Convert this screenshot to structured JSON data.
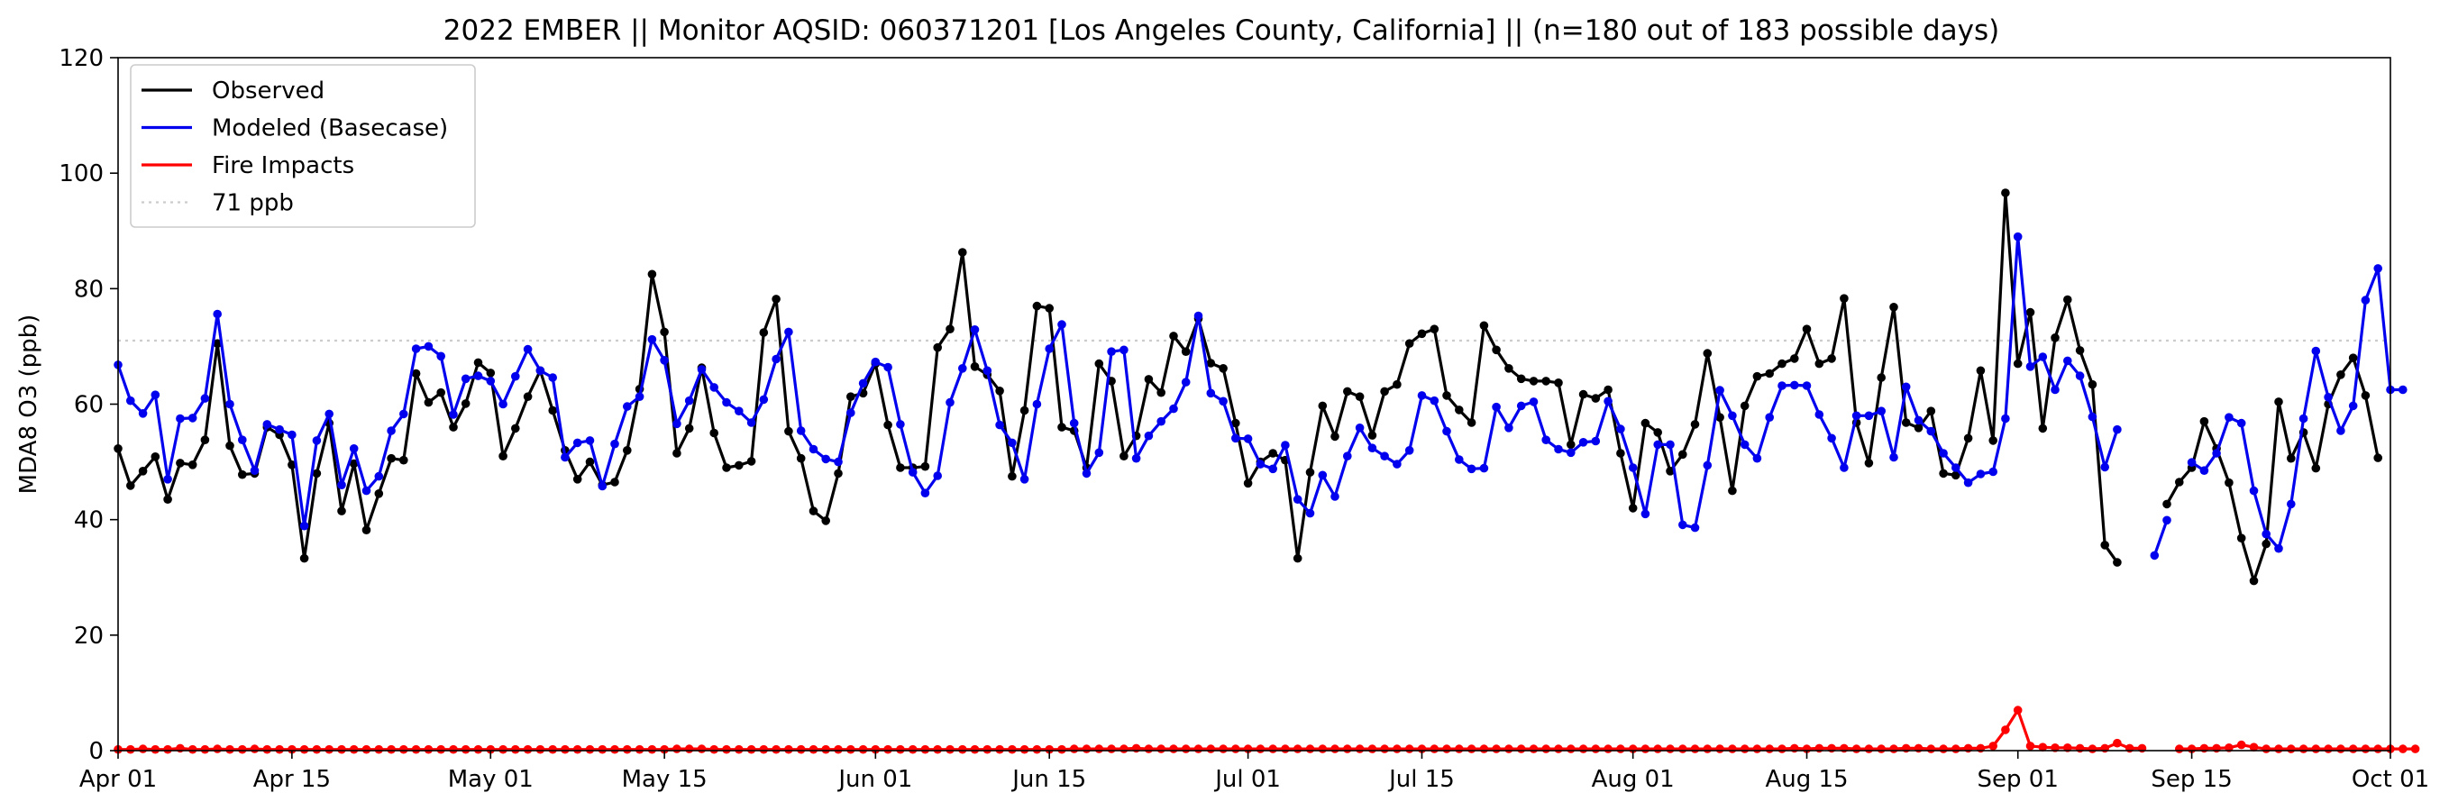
{
  "chart_data": {
    "type": "line",
    "title": "2022 EMBER || Monitor AQSID: 060371201 [Los Angeles County, California] || (n=180 out of 183 possible days)",
    "ylabel": "MDA8 O3 (ppb)",
    "xlabel": "",
    "ylim": [
      0,
      120
    ],
    "xlim": [
      "2022-04-01",
      "2022-10-01"
    ],
    "yticks": [
      "0",
      "20",
      "40",
      "60",
      "80",
      "100",
      "120"
    ],
    "xticks": [
      {
        "date": "2022-04-01",
        "label": "Apr 01"
      },
      {
        "date": "2022-04-15",
        "label": "Apr 15"
      },
      {
        "date": "2022-05-01",
        "label": "May 01"
      },
      {
        "date": "2022-05-15",
        "label": "May 15"
      },
      {
        "date": "2022-06-01",
        "label": "Jun 01"
      },
      {
        "date": "2022-06-15",
        "label": "Jun 15"
      },
      {
        "date": "2022-07-01",
        "label": "Jul 01"
      },
      {
        "date": "2022-07-15",
        "label": "Jul 15"
      },
      {
        "date": "2022-08-01",
        "label": "Aug 01"
      },
      {
        "date": "2022-08-15",
        "label": "Aug 15"
      },
      {
        "date": "2022-09-01",
        "label": "Sep 01"
      },
      {
        "date": "2022-09-15",
        "label": "Sep 15"
      },
      {
        "date": "2022-10-01",
        "label": "Oct 01"
      }
    ],
    "start_date": "2022-04-01",
    "legend_position": "top-left",
    "threshold": {
      "value": 71,
      "label": "71 ppb",
      "color": "#cccccc"
    },
    "series": [
      {
        "name": "Observed",
        "color": "#000000",
        "values": [
          52.3,
          45.9,
          48.4,
          50.9,
          43.5,
          49.8,
          49.5,
          53.8,
          70.5,
          52.8,
          47.8,
          48.0,
          56.0,
          54.7,
          49.5,
          33.3,
          48.0,
          56.7,
          41.5,
          49.7,
          38.2,
          44.5,
          50.6,
          50.3,
          65.3,
          60.3,
          62.0,
          56.0,
          60.1,
          67.2,
          65.4,
          51.0,
          55.8,
          61.3,
          65.8,
          58.9,
          52.0,
          47.0,
          50.0,
          46.0,
          46.5,
          52.0,
          62.6,
          82.5,
          72.5,
          51.5,
          55.8,
          66.3,
          55.0,
          49.0,
          49.4,
          50.1,
          72.4,
          78.2,
          55.3,
          50.6,
          41.5,
          39.8,
          48.0,
          61.3,
          61.9,
          67.0,
          56.4,
          49.0,
          49.0,
          49.2,
          69.8,
          73.0,
          86.3,
          66.5,
          65.1,
          62.3,
          47.5,
          58.9,
          77.0,
          76.6,
          56.0,
          55.4,
          49.0,
          67.0,
          64.0,
          51.0,
          54.5,
          64.3,
          62.0,
          71.8,
          69.1,
          74.8,
          67.1,
          66.2,
          56.7,
          46.3,
          50.0,
          51.5,
          50.3,
          33.3,
          48.2,
          59.7,
          54.4,
          62.2,
          61.3,
          54.6,
          62.2,
          63.4,
          70.5,
          72.2,
          73.0,
          61.5,
          59.0,
          56.8,
          73.6,
          69.4,
          66.2,
          64.4,
          64.0,
          64.0,
          63.7,
          53.0,
          61.7,
          61.0,
          62.5,
          51.5,
          42.0,
          56.7,
          55.1,
          48.4,
          51.3,
          56.5,
          68.8,
          57.7,
          45.0,
          59.7,
          64.8,
          65.3,
          67.0,
          67.9,
          73.0,
          67.0,
          67.9,
          78.3,
          56.8,
          49.8,
          64.6,
          76.8,
          56.8,
          55.9,
          58.8,
          48.0,
          47.7,
          54.1,
          65.8,
          53.7,
          96.6,
          67.0,
          75.9,
          55.8,
          71.5,
          78.1,
          69.3,
          63.4,
          35.6,
          32.6,
          null,
          null,
          null,
          42.7,
          46.5,
          49.0,
          57.0,
          52.3,
          46.4,
          36.8,
          29.4,
          35.8,
          60.4,
          50.6,
          55.1,
          48.9,
          60.0,
          65.1,
          68.0,
          61.5,
          50.7
        ]
      },
      {
        "name": "Modeled (Basecase)",
        "color": "#0000ee",
        "values": [
          66.8,
          60.6,
          58.4,
          61.6,
          47.0,
          57.5,
          57.6,
          61.0,
          75.6,
          60.0,
          53.8,
          48.5,
          56.5,
          55.6,
          54.7,
          38.9,
          53.7,
          58.3,
          46.0,
          52.3,
          45.0,
          47.5,
          55.4,
          58.3,
          69.6,
          70.0,
          68.3,
          58.2,
          64.4,
          64.9,
          64.0,
          60.0,
          64.8,
          69.5,
          65.8,
          64.6,
          50.8,
          53.3,
          53.7,
          45.8,
          53.1,
          59.6,
          61.3,
          71.2,
          67.6,
          56.6,
          60.6,
          66.0,
          62.9,
          60.3,
          58.8,
          56.8,
          60.8,
          67.8,
          72.5,
          55.4,
          52.2,
          50.5,
          50.0,
          58.5,
          63.6,
          67.3,
          66.4,
          56.5,
          48.2,
          44.6,
          47.6,
          60.3,
          66.2,
          72.9,
          65.8,
          56.4,
          53.3,
          47.0,
          60.0,
          69.6,
          73.8,
          56.7,
          48.0,
          51.6,
          69.1,
          69.4,
          50.6,
          54.5,
          57.0,
          59.2,
          63.8,
          75.3,
          61.9,
          60.5,
          54.1,
          54.0,
          49.6,
          48.8,
          52.9,
          43.5,
          41.1,
          47.7,
          44.0,
          51.0,
          55.9,
          52.4,
          51.0,
          49.6,
          52.0,
          61.5,
          60.6,
          55.3,
          50.4,
          48.8,
          48.9,
          59.5,
          55.9,
          59.7,
          60.4,
          53.8,
          52.2,
          51.6,
          53.4,
          53.6,
          60.5,
          55.7,
          49.0,
          41.0,
          53.0,
          53.0,
          39.1,
          38.6,
          49.4,
          62.4,
          58.0,
          53.0,
          50.6,
          57.7,
          63.2,
          63.3,
          63.2,
          58.2,
          54.1,
          49.0,
          58.0,
          58.0,
          58.8,
          50.8,
          63.0,
          57.2,
          55.3,
          51.5,
          49.0,
          46.4,
          47.9,
          48.3,
          57.5,
          89.0,
          66.5,
          68.2,
          62.5,
          67.5,
          64.9,
          57.8,
          49.1,
          55.6,
          null,
          null,
          33.8,
          39.9,
          null,
          49.9,
          48.5,
          51.5,
          57.7,
          56.7,
          45.0,
          37.5,
          35.0,
          42.7,
          57.5,
          69.2,
          61.2,
          55.4,
          59.7,
          78.0,
          83.5,
          62.5,
          62.5
        ]
      },
      {
        "name": "Fire Impacts",
        "color": "#ff0000",
        "values": [
          0.2,
          0.2,
          0.3,
          0.2,
          0.2,
          0.4,
          0.2,
          0.2,
          0.3,
          0.2,
          0.2,
          0.3,
          0.2,
          0.2,
          0.2,
          0.2,
          0.2,
          0.2,
          0.2,
          0.2,
          0.2,
          0.2,
          0.2,
          0.2,
          0.2,
          0.2,
          0.2,
          0.2,
          0.2,
          0.2,
          0.2,
          0.2,
          0.2,
          0.2,
          0.2,
          0.2,
          0.2,
          0.2,
          0.2,
          0.2,
          0.2,
          0.2,
          0.2,
          0.2,
          0.2,
          0.3,
          0.3,
          0.3,
          0.2,
          0.2,
          0.2,
          0.2,
          0.2,
          0.2,
          0.2,
          0.2,
          0.2,
          0.2,
          0.2,
          0.2,
          0.2,
          0.2,
          0.2,
          0.2,
          0.2,
          0.2,
          0.2,
          0.2,
          0.2,
          0.2,
          0.2,
          0.2,
          0.2,
          0.2,
          0.2,
          0.2,
          0.2,
          0.3,
          0.3,
          0.3,
          0.3,
          0.3,
          0.4,
          0.3,
          0.3,
          0.3,
          0.3,
          0.3,
          0.3,
          0.3,
          0.3,
          0.3,
          0.3,
          0.3,
          0.3,
          0.3,
          0.3,
          0.3,
          0.3,
          0.3,
          0.3,
          0.3,
          0.3,
          0.3,
          0.3,
          0.3,
          0.3,
          0.3,
          0.3,
          0.3,
          0.3,
          0.3,
          0.3,
          0.3,
          0.3,
          0.3,
          0.3,
          0.3,
          0.3,
          0.3,
          0.3,
          0.3,
          0.3,
          0.3,
          0.3,
          0.3,
          0.3,
          0.3,
          0.3,
          0.3,
          0.3,
          0.3,
          0.3,
          0.3,
          0.3,
          0.4,
          0.3,
          0.4,
          0.4,
          0.4,
          0.3,
          0.3,
          0.3,
          0.3,
          0.4,
          0.4,
          0.3,
          0.3,
          0.3,
          0.4,
          0.4,
          0.8,
          3.6,
          7.0,
          0.8,
          0.6,
          0.5,
          0.5,
          0.4,
          0.3,
          0.4,
          1.3,
          0.4,
          0.4,
          null,
          null,
          0.3,
          0.3,
          0.4,
          0.4,
          0.5,
          1.0,
          0.6,
          0.3,
          0.3,
          0.3,
          0.3,
          0.3,
          0.3,
          0.3,
          0.3,
          0.3,
          0.3,
          0.3,
          0.3,
          0.3
        ]
      }
    ]
  }
}
